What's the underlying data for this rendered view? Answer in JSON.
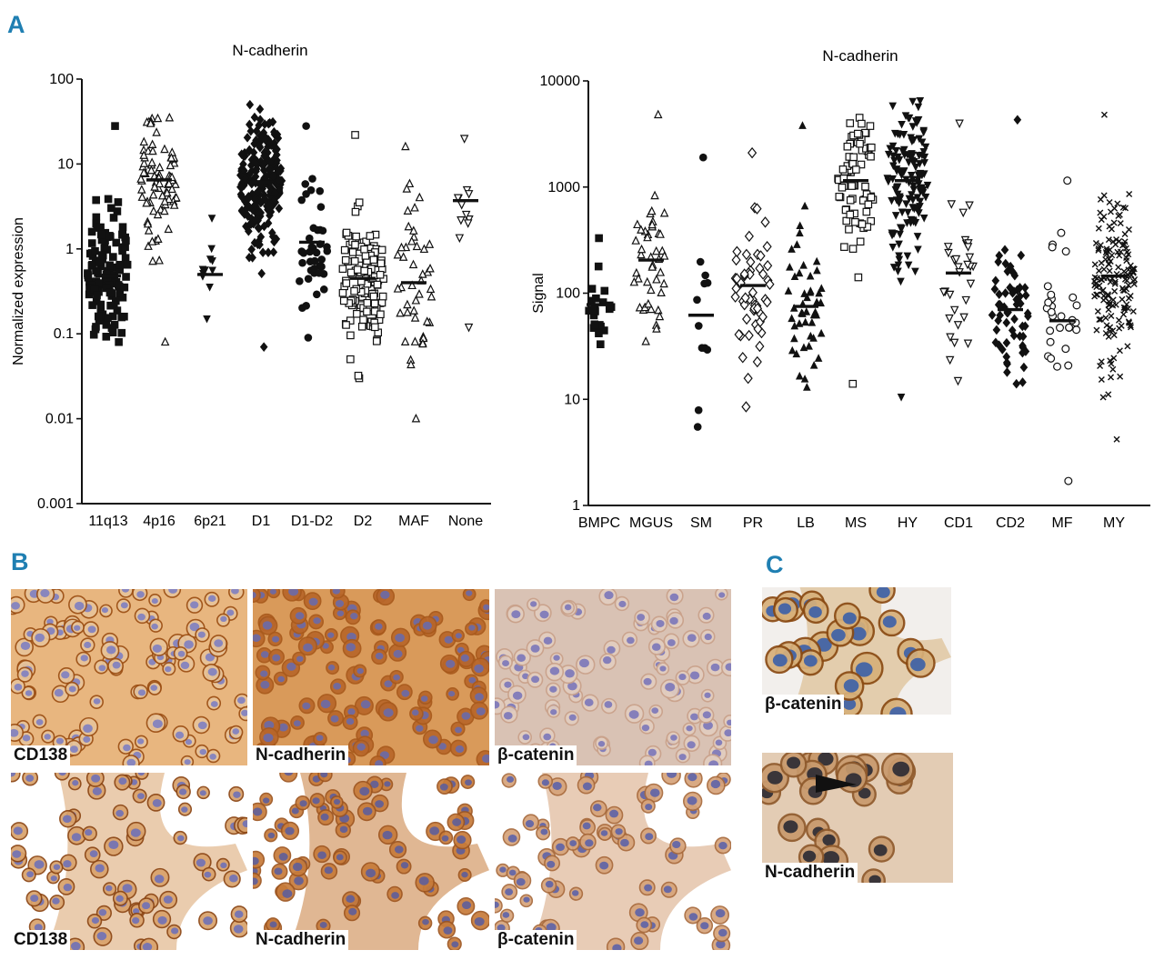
{
  "panels": {
    "a": "A",
    "b": "B",
    "c": "C"
  },
  "chart_data": [
    {
      "type": "scatter",
      "title": "N-cadherin",
      "xlabel": "",
      "ylabel": "Normalized expression",
      "scale": "log",
      "ylim": [
        0.001,
        100
      ],
      "yticks": [
        "0.001",
        "0.01",
        "0.1",
        "1",
        "10",
        "100"
      ],
      "categories": [
        "11q13",
        "4p16",
        "6p21",
        "D1",
        "D1-D2",
        "D2",
        "MAF",
        "None"
      ],
      "groups": [
        {
          "name": "11q13",
          "marker": "square-filled",
          "n": 120,
          "median": 0.48,
          "min": 0.08,
          "max": 28
        },
        {
          "name": "4p16",
          "marker": "triangle-open",
          "n": 80,
          "median": 6.5,
          "min": 0.08,
          "max": 35
        },
        {
          "name": "6p21",
          "marker": "triangle-down-filled",
          "n": 11,
          "median": 0.5,
          "min": 0.15,
          "max": 2.3
        },
        {
          "name": "D1",
          "marker": "diamond-filled",
          "n": 230,
          "median": 6.2,
          "min": 0.07,
          "max": 50
        },
        {
          "name": "D1-D2",
          "marker": "circle-filled",
          "n": 40,
          "median": 1.2,
          "min": 0.09,
          "max": 28
        },
        {
          "name": "D2",
          "marker": "square-open",
          "n": 130,
          "median": 0.45,
          "min": 0.03,
          "max": 22
        },
        {
          "name": "MAF",
          "marker": "triangle-open",
          "n": 45,
          "median": 0.4,
          "min": 0.01,
          "max": 16
        },
        {
          "name": "None",
          "marker": "triangle-down-open",
          "n": 12,
          "median": 3.7,
          "min": 0.12,
          "max": 20
        }
      ]
    },
    {
      "type": "scatter",
      "title": "N-cadherin",
      "xlabel": "",
      "ylabel": "Signal",
      "scale": "log",
      "ylim": [
        1,
        10000
      ],
      "yticks": [
        "1",
        "10",
        "100",
        "1000",
        "10000"
      ],
      "categories": [
        "BMPC",
        "MGUS",
        "SM",
        "PR",
        "LB",
        "MS",
        "HY",
        "CD1",
        "CD2",
        "MF",
        "MY"
      ],
      "groups": [
        {
          "name": "BMPC",
          "marker": "square-filled",
          "n": 22,
          "median": 78,
          "min": 33,
          "max": 330
        },
        {
          "name": "MGUS",
          "marker": "triangle-open",
          "n": 44,
          "median": 205,
          "min": 35,
          "max": 4800
        },
        {
          "name": "SM",
          "marker": "circle-filled",
          "n": 12,
          "median": 62,
          "min": 5.5,
          "max": 1900
        },
        {
          "name": "PR",
          "marker": "diamond-open",
          "n": 55,
          "median": 118,
          "min": 8.5,
          "max": 2100
        },
        {
          "name": "LB",
          "marker": "triangle-filled",
          "n": 50,
          "median": 75,
          "min": 13,
          "max": 3800
        },
        {
          "name": "MS",
          "marker": "square-open",
          "n": 75,
          "median": 1150,
          "min": 14,
          "max": 4500
        },
        {
          "name": "HY",
          "marker": "triangle-down-filled",
          "n": 130,
          "median": 1150,
          "min": 10.5,
          "max": 6500
        },
        {
          "name": "CD1",
          "marker": "triangle-down-open",
          "n": 32,
          "median": 155,
          "min": 15,
          "max": 4000
        },
        {
          "name": "CD2",
          "marker": "diamond-filled",
          "n": 60,
          "median": 70,
          "min": 14,
          "max": 4300
        },
        {
          "name": "MF",
          "marker": "circle-open",
          "n": 30,
          "median": 55,
          "min": 1.7,
          "max": 1150
        },
        {
          "name": "MY",
          "marker": "x-mark",
          "n": 160,
          "median": 145,
          "min": 4.2,
          "max": 4800
        }
      ]
    }
  ],
  "micrographs": [
    {
      "id": "b-cd138-top",
      "label": "CD138"
    },
    {
      "id": "b-ncad-top",
      "label": "N-cadherin"
    },
    {
      "id": "b-bcat-top",
      "label": "β-catenin"
    },
    {
      "id": "b-cd138-bottom",
      "label": "CD138"
    },
    {
      "id": "b-ncad-bottom",
      "label": "N-cadherin"
    },
    {
      "id": "b-bcat-bottom",
      "label": "β-catenin"
    },
    {
      "id": "c-bcat",
      "label": "β-catenin"
    },
    {
      "id": "c-ncad",
      "label": "N-cadherin"
    }
  ],
  "colors": {
    "panel_letter": "#1f7fb2",
    "stain_brown": "#b5692c",
    "nuclei_blue": "#6c6fb4"
  }
}
